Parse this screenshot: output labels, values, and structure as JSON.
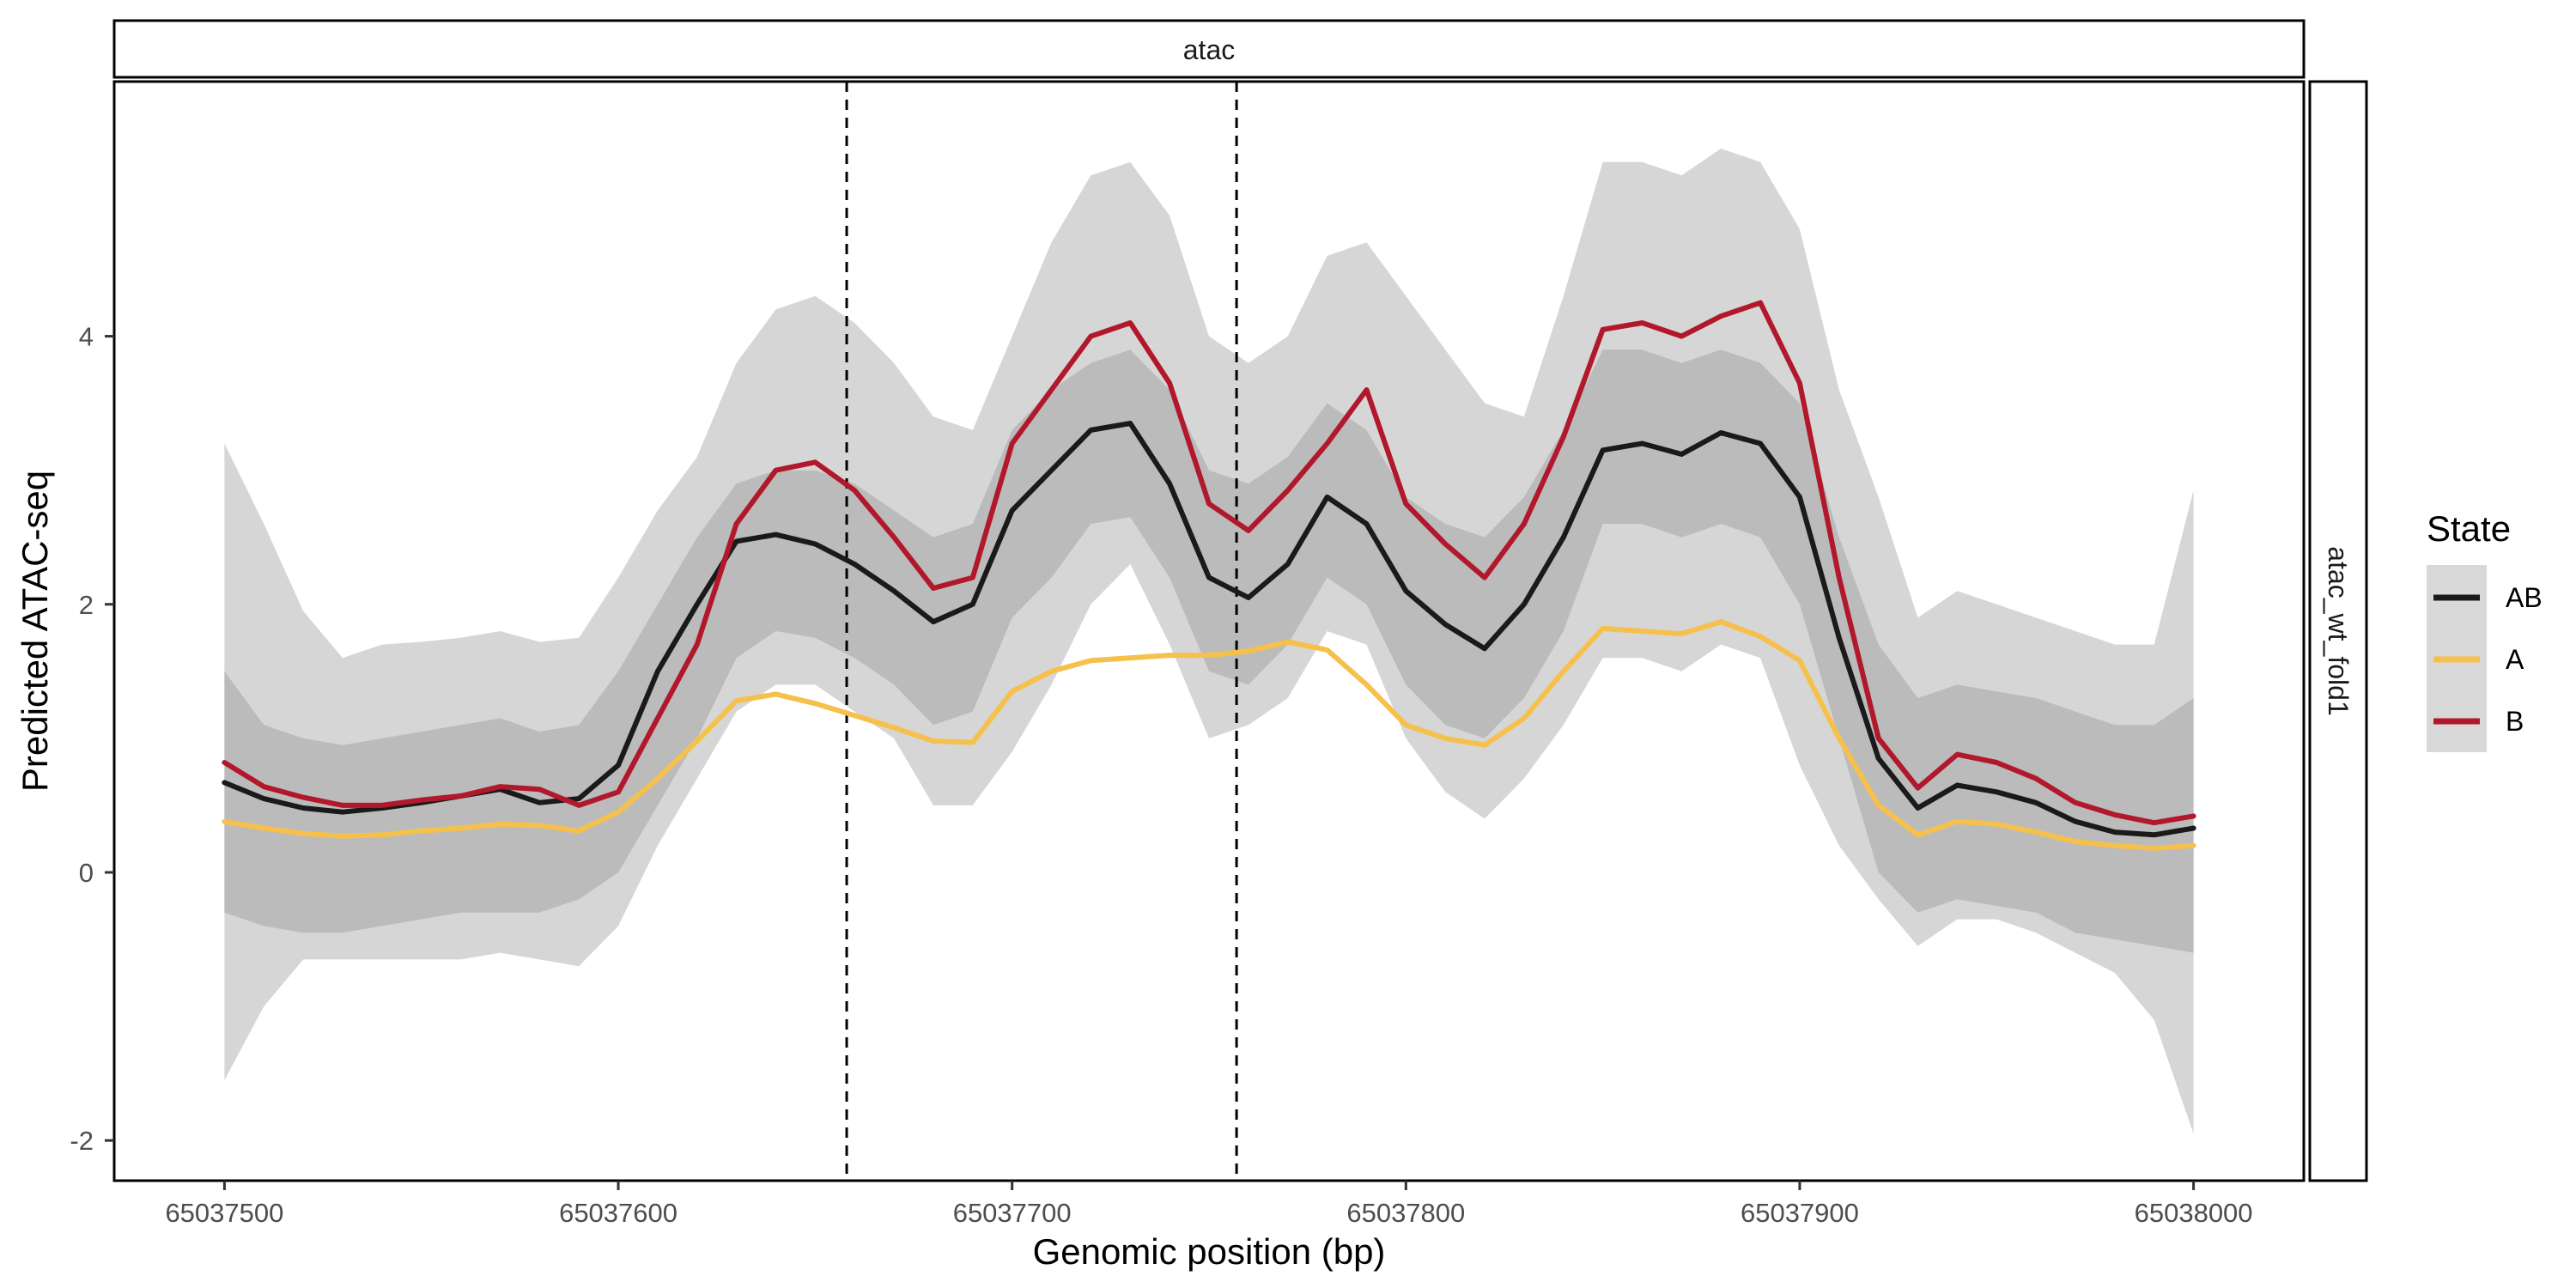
{
  "chart_data": {
    "type": "line",
    "facet_top": "atac",
    "facet_right": "atac_wt_fold1",
    "xlabel": "Genomic position (bp)",
    "ylabel": "Predicted ATAC-seq",
    "xlim": [
      65037472,
      65038028
    ],
    "ylim": [
      -2.3,
      5.9
    ],
    "x_ticks": [
      65037500,
      65037600,
      65037700,
      65037800,
      65037900,
      65038000
    ],
    "y_ticks": [
      -2,
      0,
      2,
      4
    ],
    "x_tick_labels": [
      "65037500",
      "65037600",
      "65037700",
      "65037800",
      "65037900",
      "65038000"
    ],
    "y_tick_labels": [
      "-2",
      "0",
      "2",
      "4"
    ],
    "vlines": [
      65037658,
      65037757
    ],
    "legend": {
      "title": "State",
      "placement": "right",
      "entries": [
        {
          "label": "AB",
          "color": "#1a1a1a"
        },
        {
          "label": "A",
          "color": "#f6c04d"
        },
        {
          "label": "B",
          "color": "#b2182b"
        }
      ]
    },
    "x": [
      65037500,
      65037510,
      65037520,
      65037530,
      65037540,
      65037550,
      65037560,
      65037570,
      65037580,
      65037590,
      65037600,
      65037610,
      65037620,
      65037630,
      65037640,
      65037650,
      65037660,
      65037670,
      65037680,
      65037690,
      65037700,
      65037710,
      65037720,
      65037730,
      65037740,
      65037750,
      65037760,
      65037770,
      65037780,
      65037790,
      65037800,
      65037810,
      65037820,
      65037830,
      65037840,
      65037850,
      65037860,
      65037870,
      65037880,
      65037890,
      65037900,
      65037910,
      65037920,
      65037930,
      65037940,
      65037950,
      65037960,
      65037970,
      65037980,
      65037990,
      65038000
    ],
    "series": [
      {
        "name": "AB",
        "color": "#1a1a1a",
        "values": [
          0.67,
          0.55,
          0.48,
          0.45,
          0.48,
          0.52,
          0.57,
          0.62,
          0.52,
          0.55,
          0.8,
          1.5,
          2.0,
          2.47,
          2.52,
          2.45,
          2.3,
          2.1,
          1.87,
          2.0,
          2.7,
          3.0,
          3.3,
          3.35,
          2.9,
          2.2,
          2.05,
          2.3,
          2.8,
          2.6,
          2.1,
          1.85,
          1.67,
          2.0,
          2.5,
          3.15,
          3.2,
          3.12,
          3.28,
          3.2,
          2.8,
          1.75,
          0.85,
          0.48,
          0.65,
          0.6,
          0.52,
          0.38,
          0.3,
          0.28,
          0.33
        ],
        "band_inner": [
          [
            -0.3,
            1.5
          ],
          [
            -0.4,
            1.1
          ],
          [
            -0.45,
            1.0
          ],
          [
            -0.45,
            0.95
          ],
          [
            -0.4,
            1.0
          ],
          [
            -0.35,
            1.05
          ],
          [
            -0.3,
            1.1
          ],
          [
            -0.3,
            1.15
          ],
          [
            -0.3,
            1.05
          ],
          [
            -0.2,
            1.1
          ],
          [
            0.0,
            1.5
          ],
          [
            0.5,
            2.0
          ],
          [
            1.0,
            2.5
          ],
          [
            1.6,
            2.9
          ],
          [
            1.8,
            3.0
          ],
          [
            1.75,
            3.0
          ],
          [
            1.6,
            2.9
          ],
          [
            1.4,
            2.7
          ],
          [
            1.1,
            2.5
          ],
          [
            1.2,
            2.6
          ],
          [
            1.9,
            3.3
          ],
          [
            2.2,
            3.6
          ],
          [
            2.6,
            3.8
          ],
          [
            2.65,
            3.9
          ],
          [
            2.2,
            3.6
          ],
          [
            1.5,
            3.0
          ],
          [
            1.4,
            2.9
          ],
          [
            1.7,
            3.1
          ],
          [
            2.2,
            3.5
          ],
          [
            2.0,
            3.3
          ],
          [
            1.4,
            2.8
          ],
          [
            1.1,
            2.6
          ],
          [
            1.0,
            2.5
          ],
          [
            1.3,
            2.8
          ],
          [
            1.8,
            3.3
          ],
          [
            2.6,
            3.9
          ],
          [
            2.6,
            3.9
          ],
          [
            2.5,
            3.8
          ],
          [
            2.6,
            3.9
          ],
          [
            2.5,
            3.8
          ],
          [
            2.0,
            3.5
          ],
          [
            1.0,
            2.5
          ],
          [
            0.0,
            1.7
          ],
          [
            -0.3,
            1.3
          ],
          [
            -0.2,
            1.4
          ],
          [
            -0.25,
            1.35
          ],
          [
            -0.3,
            1.3
          ],
          [
            -0.45,
            1.2
          ],
          [
            -0.5,
            1.1
          ],
          [
            -0.55,
            1.1
          ],
          [
            -0.6,
            1.3
          ]
        ],
        "band_outer": [
          [
            -1.55,
            3.2
          ],
          [
            -1.0,
            2.6
          ],
          [
            -0.65,
            1.95
          ],
          [
            -0.65,
            1.6
          ],
          [
            -0.65,
            1.7
          ],
          [
            -0.65,
            1.72
          ],
          [
            -0.65,
            1.75
          ],
          [
            -0.6,
            1.8
          ],
          [
            -0.65,
            1.72
          ],
          [
            -0.7,
            1.75
          ],
          [
            -0.4,
            2.2
          ],
          [
            0.2,
            2.7
          ],
          [
            0.7,
            3.1
          ],
          [
            1.2,
            3.8
          ],
          [
            1.4,
            4.2
          ],
          [
            1.4,
            4.3
          ],
          [
            1.2,
            4.1
          ],
          [
            1.0,
            3.8
          ],
          [
            0.5,
            3.4
          ],
          [
            0.5,
            3.3
          ],
          [
            0.9,
            4.0
          ],
          [
            1.4,
            4.7
          ],
          [
            2.0,
            5.2
          ],
          [
            2.3,
            5.3
          ],
          [
            1.7,
            4.9
          ],
          [
            1.0,
            4.0
          ],
          [
            1.1,
            3.8
          ],
          [
            1.3,
            4.0
          ],
          [
            1.8,
            4.6
          ],
          [
            1.7,
            4.7
          ],
          [
            1.0,
            4.3
          ],
          [
            0.6,
            3.9
          ],
          [
            0.4,
            3.5
          ],
          [
            0.7,
            3.4
          ],
          [
            1.1,
            4.3
          ],
          [
            1.6,
            5.3
          ],
          [
            1.6,
            5.3
          ],
          [
            1.5,
            5.2
          ],
          [
            1.7,
            5.4
          ],
          [
            1.6,
            5.3
          ],
          [
            0.8,
            4.8
          ],
          [
            0.2,
            3.6
          ],
          [
            -0.2,
            2.8
          ],
          [
            -0.55,
            1.9
          ],
          [
            -0.35,
            2.1
          ],
          [
            -0.35,
            2.0
          ],
          [
            -0.45,
            1.9
          ],
          [
            -0.6,
            1.8
          ],
          [
            -0.75,
            1.7
          ],
          [
            -1.1,
            1.7
          ],
          [
            -1.95,
            2.85
          ]
        ]
      },
      {
        "name": "A",
        "color": "#f6c04d",
        "values": [
          0.38,
          0.33,
          0.29,
          0.27,
          0.28,
          0.31,
          0.33,
          0.36,
          0.35,
          0.31,
          0.45,
          0.7,
          0.98,
          1.28,
          1.33,
          1.26,
          1.17,
          1.08,
          0.98,
          0.97,
          1.35,
          1.5,
          1.58,
          1.6,
          1.62,
          1.62,
          1.65,
          1.72,
          1.66,
          1.4,
          1.1,
          1.0,
          0.95,
          1.15,
          1.5,
          1.82,
          1.8,
          1.78,
          1.87,
          1.76,
          1.58,
          1.0,
          0.5,
          0.28,
          0.38,
          0.36,
          0.3,
          0.23,
          0.2,
          0.18,
          0.2
        ]
      },
      {
        "name": "B",
        "color": "#b2182b",
        "values": [
          0.82,
          0.64,
          0.56,
          0.5,
          0.5,
          0.54,
          0.57,
          0.64,
          0.62,
          0.5,
          0.6,
          1.15,
          1.7,
          2.6,
          3.0,
          3.06,
          2.85,
          2.5,
          2.12,
          2.2,
          3.2,
          3.6,
          4.0,
          4.1,
          3.65,
          2.75,
          2.55,
          2.85,
          3.2,
          3.6,
          2.75,
          2.45,
          2.2,
          2.6,
          3.25,
          4.05,
          4.1,
          4.0,
          4.15,
          4.25,
          3.65,
          2.2,
          1.0,
          0.63,
          0.88,
          0.82,
          0.7,
          0.52,
          0.43,
          0.37,
          0.42
        ]
      }
    ]
  }
}
